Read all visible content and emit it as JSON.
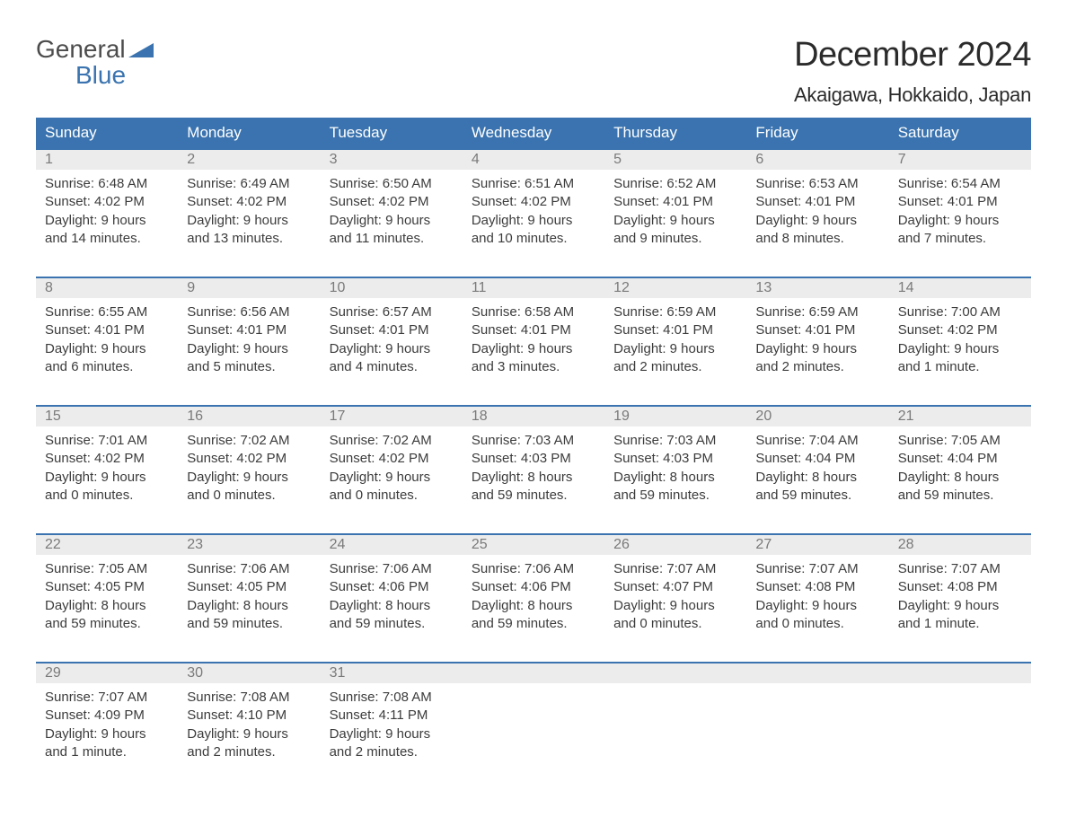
{
  "logo": {
    "line1": "General",
    "line2": "Blue",
    "color_primary": "#3a73af",
    "color_text": "#4c4c4c"
  },
  "header": {
    "month": "December 2024",
    "location": "Akaigawa, Hokkaido, Japan"
  },
  "colors": {
    "header_bar": "#3a73af",
    "header_text": "#ffffff",
    "daynum_bg": "#ececec",
    "daynum_text": "#7a7a7a",
    "body_text": "#3c3c3c",
    "week_border": "#3a73af",
    "background": "#ffffff"
  },
  "day_names": [
    "Sunday",
    "Monday",
    "Tuesday",
    "Wednesday",
    "Thursday",
    "Friday",
    "Saturday"
  ],
  "weeks": [
    [
      {
        "day": "1",
        "sunrise": "Sunrise: 6:48 AM",
        "sunset": "Sunset: 4:02 PM",
        "dl1": "Daylight: 9 hours",
        "dl2": "and 14 minutes."
      },
      {
        "day": "2",
        "sunrise": "Sunrise: 6:49 AM",
        "sunset": "Sunset: 4:02 PM",
        "dl1": "Daylight: 9 hours",
        "dl2": "and 13 minutes."
      },
      {
        "day": "3",
        "sunrise": "Sunrise: 6:50 AM",
        "sunset": "Sunset: 4:02 PM",
        "dl1": "Daylight: 9 hours",
        "dl2": "and 11 minutes."
      },
      {
        "day": "4",
        "sunrise": "Sunrise: 6:51 AM",
        "sunset": "Sunset: 4:02 PM",
        "dl1": "Daylight: 9 hours",
        "dl2": "and 10 minutes."
      },
      {
        "day": "5",
        "sunrise": "Sunrise: 6:52 AM",
        "sunset": "Sunset: 4:01 PM",
        "dl1": "Daylight: 9 hours",
        "dl2": "and 9 minutes."
      },
      {
        "day": "6",
        "sunrise": "Sunrise: 6:53 AM",
        "sunset": "Sunset: 4:01 PM",
        "dl1": "Daylight: 9 hours",
        "dl2": "and 8 minutes."
      },
      {
        "day": "7",
        "sunrise": "Sunrise: 6:54 AM",
        "sunset": "Sunset: 4:01 PM",
        "dl1": "Daylight: 9 hours",
        "dl2": "and 7 minutes."
      }
    ],
    [
      {
        "day": "8",
        "sunrise": "Sunrise: 6:55 AM",
        "sunset": "Sunset: 4:01 PM",
        "dl1": "Daylight: 9 hours",
        "dl2": "and 6 minutes."
      },
      {
        "day": "9",
        "sunrise": "Sunrise: 6:56 AM",
        "sunset": "Sunset: 4:01 PM",
        "dl1": "Daylight: 9 hours",
        "dl2": "and 5 minutes."
      },
      {
        "day": "10",
        "sunrise": "Sunrise: 6:57 AM",
        "sunset": "Sunset: 4:01 PM",
        "dl1": "Daylight: 9 hours",
        "dl2": "and 4 minutes."
      },
      {
        "day": "11",
        "sunrise": "Sunrise: 6:58 AM",
        "sunset": "Sunset: 4:01 PM",
        "dl1": "Daylight: 9 hours",
        "dl2": "and 3 minutes."
      },
      {
        "day": "12",
        "sunrise": "Sunrise: 6:59 AM",
        "sunset": "Sunset: 4:01 PM",
        "dl1": "Daylight: 9 hours",
        "dl2": "and 2 minutes."
      },
      {
        "day": "13",
        "sunrise": "Sunrise: 6:59 AM",
        "sunset": "Sunset: 4:01 PM",
        "dl1": "Daylight: 9 hours",
        "dl2": "and 2 minutes."
      },
      {
        "day": "14",
        "sunrise": "Sunrise: 7:00 AM",
        "sunset": "Sunset: 4:02 PM",
        "dl1": "Daylight: 9 hours",
        "dl2": "and 1 minute."
      }
    ],
    [
      {
        "day": "15",
        "sunrise": "Sunrise: 7:01 AM",
        "sunset": "Sunset: 4:02 PM",
        "dl1": "Daylight: 9 hours",
        "dl2": "and 0 minutes."
      },
      {
        "day": "16",
        "sunrise": "Sunrise: 7:02 AM",
        "sunset": "Sunset: 4:02 PM",
        "dl1": "Daylight: 9 hours",
        "dl2": "and 0 minutes."
      },
      {
        "day": "17",
        "sunrise": "Sunrise: 7:02 AM",
        "sunset": "Sunset: 4:02 PM",
        "dl1": "Daylight: 9 hours",
        "dl2": "and 0 minutes."
      },
      {
        "day": "18",
        "sunrise": "Sunrise: 7:03 AM",
        "sunset": "Sunset: 4:03 PM",
        "dl1": "Daylight: 8 hours",
        "dl2": "and 59 minutes."
      },
      {
        "day": "19",
        "sunrise": "Sunrise: 7:03 AM",
        "sunset": "Sunset: 4:03 PM",
        "dl1": "Daylight: 8 hours",
        "dl2": "and 59 minutes."
      },
      {
        "day": "20",
        "sunrise": "Sunrise: 7:04 AM",
        "sunset": "Sunset: 4:04 PM",
        "dl1": "Daylight: 8 hours",
        "dl2": "and 59 minutes."
      },
      {
        "day": "21",
        "sunrise": "Sunrise: 7:05 AM",
        "sunset": "Sunset: 4:04 PM",
        "dl1": "Daylight: 8 hours",
        "dl2": "and 59 minutes."
      }
    ],
    [
      {
        "day": "22",
        "sunrise": "Sunrise: 7:05 AM",
        "sunset": "Sunset: 4:05 PM",
        "dl1": "Daylight: 8 hours",
        "dl2": "and 59 minutes."
      },
      {
        "day": "23",
        "sunrise": "Sunrise: 7:06 AM",
        "sunset": "Sunset: 4:05 PM",
        "dl1": "Daylight: 8 hours",
        "dl2": "and 59 minutes."
      },
      {
        "day": "24",
        "sunrise": "Sunrise: 7:06 AM",
        "sunset": "Sunset: 4:06 PM",
        "dl1": "Daylight: 8 hours",
        "dl2": "and 59 minutes."
      },
      {
        "day": "25",
        "sunrise": "Sunrise: 7:06 AM",
        "sunset": "Sunset: 4:06 PM",
        "dl1": "Daylight: 8 hours",
        "dl2": "and 59 minutes."
      },
      {
        "day": "26",
        "sunrise": "Sunrise: 7:07 AM",
        "sunset": "Sunset: 4:07 PM",
        "dl1": "Daylight: 9 hours",
        "dl2": "and 0 minutes."
      },
      {
        "day": "27",
        "sunrise": "Sunrise: 7:07 AM",
        "sunset": "Sunset: 4:08 PM",
        "dl1": "Daylight: 9 hours",
        "dl2": "and 0 minutes."
      },
      {
        "day": "28",
        "sunrise": "Sunrise: 7:07 AM",
        "sunset": "Sunset: 4:08 PM",
        "dl1": "Daylight: 9 hours",
        "dl2": "and 1 minute."
      }
    ],
    [
      {
        "day": "29",
        "sunrise": "Sunrise: 7:07 AM",
        "sunset": "Sunset: 4:09 PM",
        "dl1": "Daylight: 9 hours",
        "dl2": "and 1 minute."
      },
      {
        "day": "30",
        "sunrise": "Sunrise: 7:08 AM",
        "sunset": "Sunset: 4:10 PM",
        "dl1": "Daylight: 9 hours",
        "dl2": "and 2 minutes."
      },
      {
        "day": "31",
        "sunrise": "Sunrise: 7:08 AM",
        "sunset": "Sunset: 4:11 PM",
        "dl1": "Daylight: 9 hours",
        "dl2": "and 2 minutes."
      },
      null,
      null,
      null,
      null
    ]
  ]
}
